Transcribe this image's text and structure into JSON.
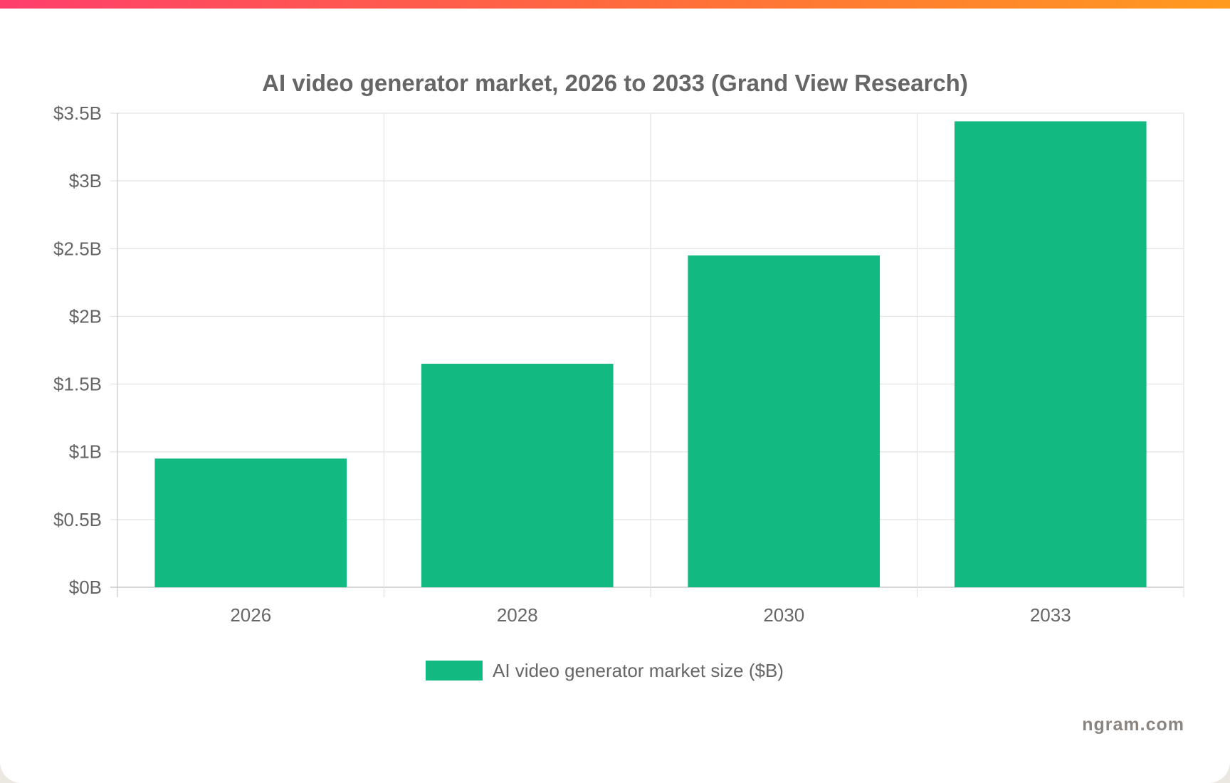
{
  "brand": {
    "watermark": "ngram.com",
    "gradient": [
      "#ff3e6c",
      "#ff6a3d",
      "#ff9a1f"
    ]
  },
  "chart_data": {
    "type": "bar",
    "title": "AI video generator market, 2026 to 2033 (Grand View Research)",
    "categories": [
      "2026",
      "2028",
      "2030",
      "2033"
    ],
    "series": [
      {
        "name": "AI video generator market size ($B)",
        "values": [
          0.95,
          1.65,
          2.45,
          3.44
        ],
        "color": "#12b981"
      }
    ],
    "ylim": [
      0,
      3.5
    ],
    "y_ticks": [
      {
        "value": 0,
        "label": "$0B"
      },
      {
        "value": 0.5,
        "label": "$0.5B"
      },
      {
        "value": 1,
        "label": "$1B"
      },
      {
        "value": 1.5,
        "label": "$1.5B"
      },
      {
        "value": 2,
        "label": "$2B"
      },
      {
        "value": 2.5,
        "label": "$2.5B"
      },
      {
        "value": 3,
        "label": "$3B"
      },
      {
        "value": 3.5,
        "label": "$3.5B"
      }
    ],
    "grid": true,
    "legend_position": "bottom"
  }
}
